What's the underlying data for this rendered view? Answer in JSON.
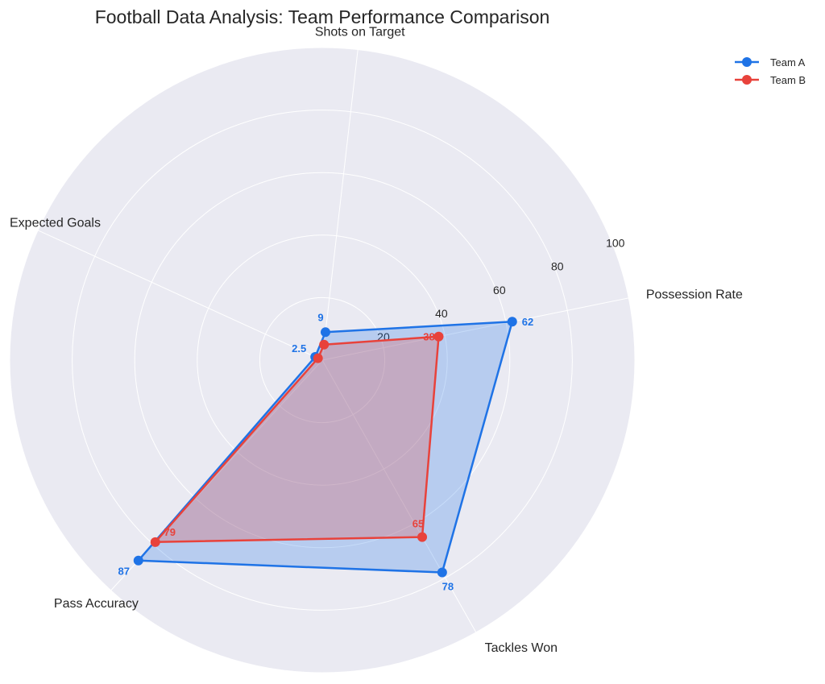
{
  "chart_data": {
    "type": "radar",
    "title": "Football Data Analysis: Team Performance Comparison",
    "categories": [
      "Possession Rate",
      "Shots on Target",
      "Expected Goals",
      "Pass Accuracy",
      "Tackles Won"
    ],
    "rlim": [
      0,
      100
    ],
    "rticks": [
      20,
      40,
      60,
      80,
      100
    ],
    "grid": true,
    "legend_position": "top-right",
    "series": [
      {
        "name": "Team A",
        "values": [
          62,
          9,
          2.5,
          87,
          78
        ],
        "labels": [
          "62",
          "9",
          "2.5",
          "87",
          "78"
        ],
        "color": "#1f73e6"
      },
      {
        "name": "Team B",
        "values": [
          38,
          5,
          1.5,
          79,
          65
        ],
        "labels": [
          "38",
          "",
          "",
          "79",
          "65"
        ],
        "color": "#e8423b"
      }
    ]
  },
  "colors": {
    "panel_background": "#eaeaf2",
    "grid": "#ffffff",
    "text": "#262626"
  }
}
